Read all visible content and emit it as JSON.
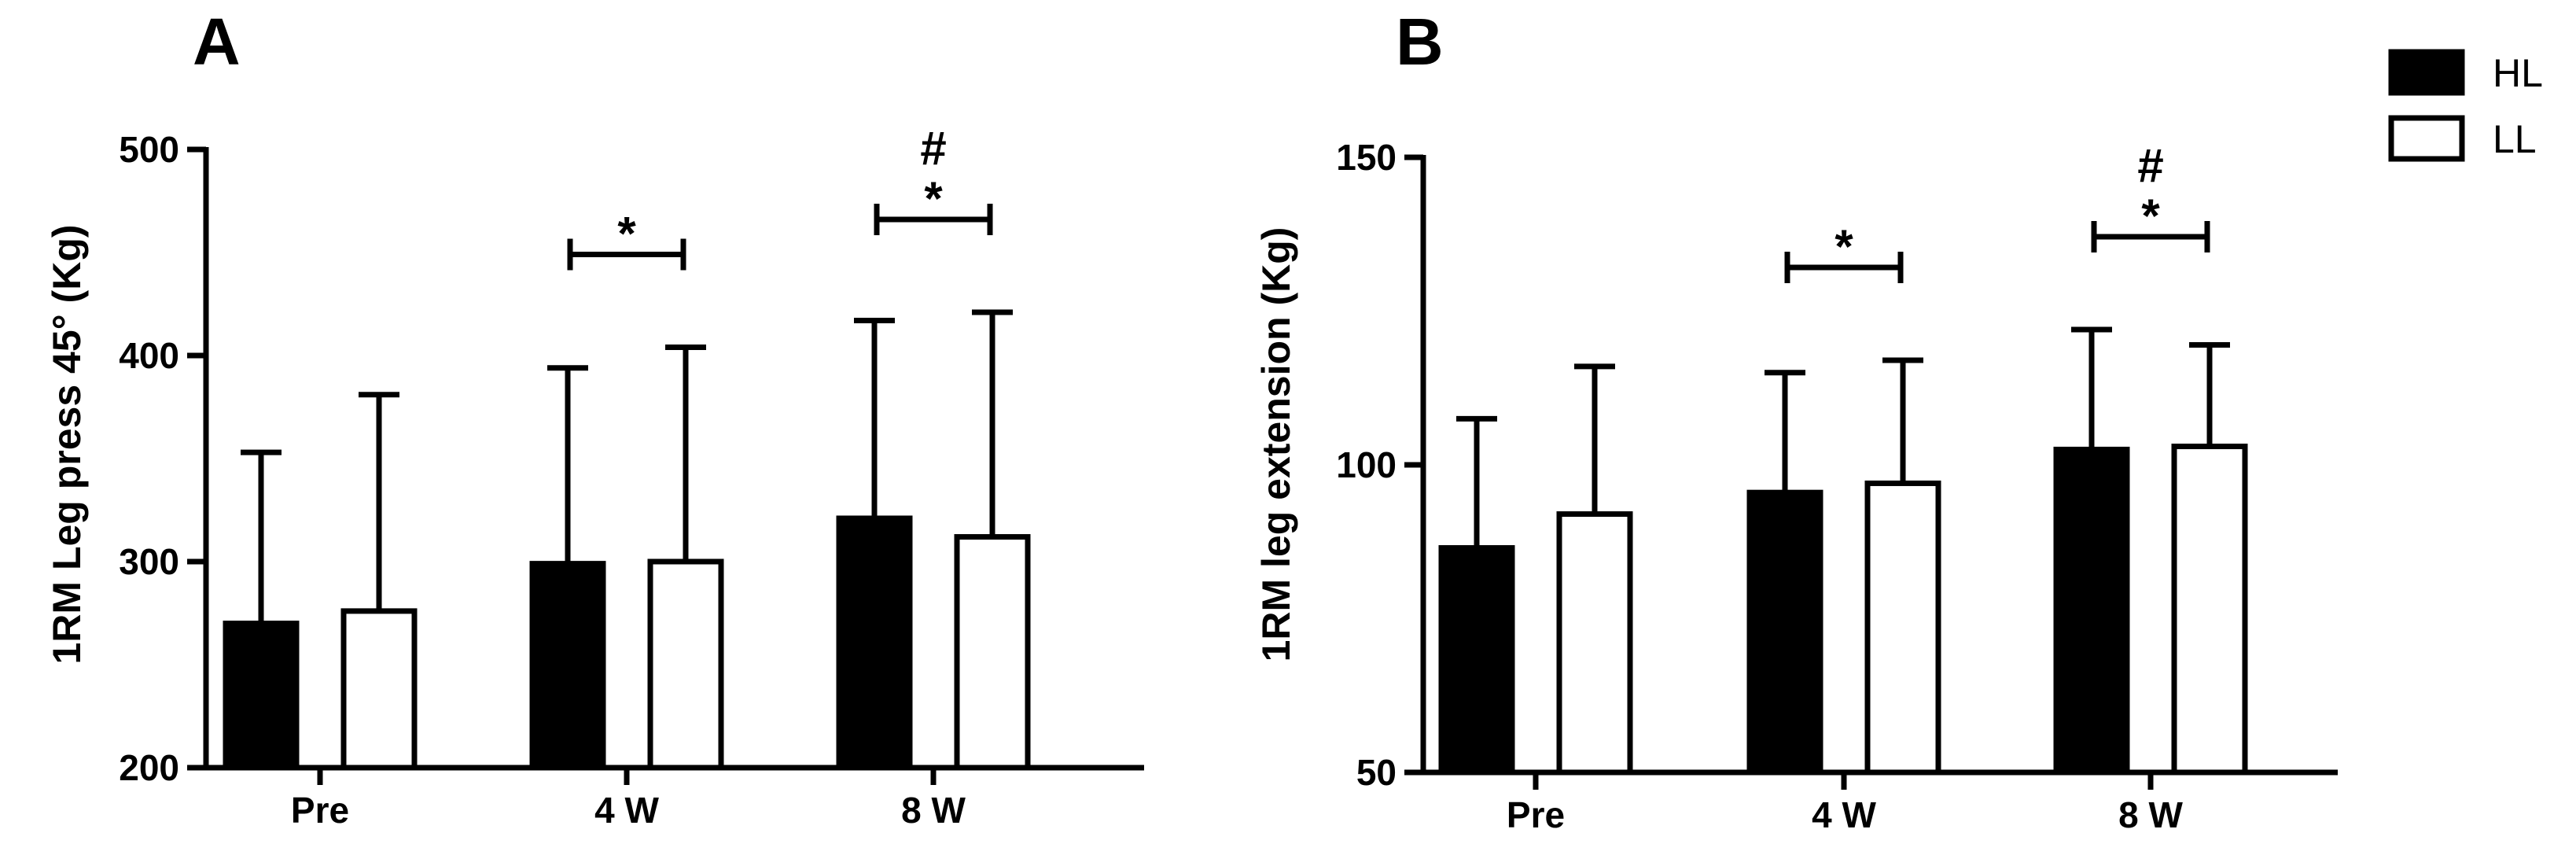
{
  "chart_data": [
    {
      "panel": "A",
      "type": "bar",
      "title": "",
      "xlabel": "",
      "ylabel": "1RM Leg press 45° (Kg)",
      "ylim": [
        200,
        500
      ],
      "yticks": [
        200,
        300,
        400,
        500
      ],
      "categories": [
        "Pre",
        "4 W",
        "8 W"
      ],
      "series": [
        {
          "name": "HL",
          "fill": "#000000",
          "values": [
            270,
            299,
            321
          ],
          "sd": [
            83,
            95,
            96
          ]
        },
        {
          "name": "LL",
          "fill": "#ffffff",
          "values": [
            276,
            300,
            312
          ],
          "sd": [
            105,
            104,
            109
          ]
        }
      ],
      "annotations": [
        {
          "category": "4 W",
          "bracket": true,
          "marks": [
            "*"
          ]
        },
        {
          "category": "8 W",
          "bracket": true,
          "marks": [
            "*",
            "#"
          ]
        }
      ]
    },
    {
      "panel": "B",
      "type": "bar",
      "title": "",
      "xlabel": "",
      "ylabel": "1RM leg extension  (Kg)",
      "ylim": [
        50,
        150
      ],
      "yticks": [
        50,
        100,
        150
      ],
      "categories": [
        "Pre",
        "4 W",
        "8 W"
      ],
      "series": [
        {
          "name": "HL",
          "fill": "#000000",
          "values": [
            86.5,
            95.5,
            102.5
          ],
          "sd": [
            21,
            19.5,
            19.5
          ]
        },
        {
          "name": "LL",
          "fill": "#ffffff",
          "values": [
            92,
            97,
            103
          ],
          "sd": [
            24,
            20,
            16.5
          ]
        }
      ],
      "annotations": [
        {
          "category": "4 W",
          "bracket": true,
          "marks": [
            "*"
          ]
        },
        {
          "category": "8 W",
          "bracket": true,
          "marks": [
            "*",
            "#"
          ]
        }
      ]
    }
  ],
  "legend": {
    "position": "top-right",
    "entries": [
      {
        "label": "HL",
        "fill": "#000000"
      },
      {
        "label": "LL",
        "fill": "#ffffff"
      }
    ]
  }
}
